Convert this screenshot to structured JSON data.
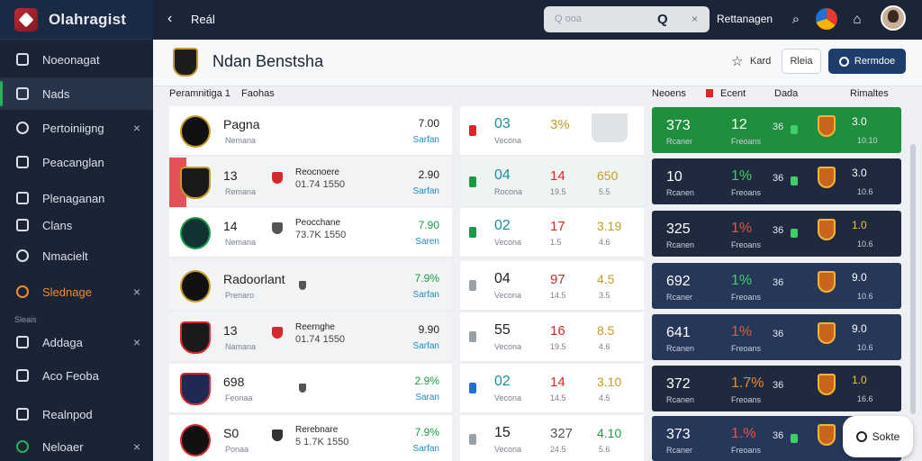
{
  "app": {
    "name": "Olahragist"
  },
  "sidebar": {
    "items": [
      {
        "label": "Noeonagat",
        "state": "normal"
      },
      {
        "label": "Nads",
        "state": "active"
      },
      {
        "label": "Pertoiniigng",
        "state": "normal",
        "close": "×"
      },
      {
        "label": "Peacanglan",
        "state": "normal"
      },
      {
        "label": "Plenaganan",
        "state": "normal"
      },
      {
        "label": "Clans",
        "state": "normal"
      },
      {
        "label": "Nmacielt",
        "state": "normal"
      },
      {
        "label": "Slednage",
        "state": "orange",
        "close": "×"
      },
      {
        "label": "Addaga",
        "state": "normal",
        "close": "×"
      },
      {
        "label": "Aco Feoba",
        "state": "normal"
      },
      {
        "label": "Realnpod",
        "state": "normal"
      },
      {
        "label": "Neloaer",
        "state": "green",
        "close": "×"
      }
    ],
    "section_label": "Sleais"
  },
  "topbar": {
    "back_label": "Reál",
    "search_placeholder": "Q ooa",
    "search_btn": "Q",
    "search_close": "×",
    "link": "Rettanagen"
  },
  "page": {
    "title": "Ndan Benstsha",
    "head_link": "Kard",
    "btn_light": "Rleia",
    "btn_dark": "Rermdoe"
  },
  "columns": {
    "left_title": "Peramnitiga 1",
    "left_sub": "Faohas",
    "right": [
      "Neoens",
      "Ecent",
      "Dada",
      "Rimaltes"
    ]
  },
  "left_rows": [
    {
      "name": "Pagna",
      "sub": "Nemana",
      "team": "",
      "meta": "",
      "val": "7.00",
      "link": "Sarfan",
      "shade": false
    },
    {
      "name": "13",
      "sub": "Remana",
      "team": "Reocnoere",
      "meta": "01.74  1550",
      "val": "2.90",
      "link": "Sarfan",
      "shade": true
    },
    {
      "name": "14",
      "sub": "Nemana",
      "team": "Peocchane",
      "meta": "73.7K  1550",
      "val": "7.90",
      "link": "Saren",
      "shade": false
    },
    {
      "name": "Radoorlant",
      "sub": "Prenaro",
      "team": "",
      "meta": "",
      "val": "7.9%",
      "link": "Sarfan",
      "shade": true
    },
    {
      "name": "13",
      "sub": "Namana",
      "team": "Reernghe",
      "meta": "01.74  1550",
      "val": "9.90",
      "link": "Sarfan",
      "shade": true
    },
    {
      "name": "698",
      "sub": "Feonaa",
      "team": "",
      "meta": "",
      "val": "2.9%",
      "link": "Saran",
      "shade": false
    },
    {
      "name": "S0",
      "sub": "Ponaa",
      "team": "Rerebnare",
      "meta": "5 1.7K  1550",
      "val": "7.9%",
      "link": "Sarfan",
      "shade": false
    }
  ],
  "mid_rows": [
    {
      "num": "03",
      "sub": "Vecona",
      "pct": "3%",
      "sub2": "",
      "val": "",
      "sub3": ""
    },
    {
      "num": "04",
      "sub": "Rocona",
      "pct": "14",
      "sub2": "19.5",
      "val": "650",
      "sub3": "5.5"
    },
    {
      "num": "02",
      "sub": "Vecona",
      "pct": "17",
      "sub2": "1.5",
      "val": "3.19",
      "sub3": "4.6"
    },
    {
      "num": "04",
      "sub": "Vecona",
      "pct": "97",
      "sub2": "14.5",
      "val": "4.5",
      "sub3": "3.5"
    },
    {
      "num": "55",
      "sub": "Vecona",
      "pct": "16",
      "sub2": "19.5",
      "val": "8.5",
      "sub3": "4.6"
    },
    {
      "num": "02",
      "sub": "Vecona",
      "pct": "14",
      "sub2": "14.5",
      "val": "3.10",
      "sub3": "4.5"
    },
    {
      "num": "15",
      "sub": "Vecona",
      "pct": "327",
      "sub2": "24.5",
      "val": "4.10",
      "sub3": "5.6"
    }
  ],
  "right_rows": [
    {
      "big": "373",
      "sub": "Rcaner",
      "mid": "12",
      "sub2": "Freoans",
      "small": "36",
      "score": "3.0",
      "score2": "10.10"
    },
    {
      "big": "10",
      "sub": "Rcanen",
      "mid": "1%",
      "sub2": "Freoans",
      "small": "36",
      "score": "3.0",
      "score2": "10.6"
    },
    {
      "big": "325",
      "sub": "Rcanen",
      "mid": "1%",
      "sub2": "Freoans",
      "small": "36",
      "score": "1.0",
      "score2": "10.6"
    },
    {
      "big": "692",
      "sub": "Rcaner",
      "mid": "1%",
      "sub2": "Freoans",
      "small": "36",
      "score": "9.0",
      "score2": "10.6"
    },
    {
      "big": "641",
      "sub": "Rcanen",
      "mid": "1%",
      "sub2": "Freoans",
      "small": "36",
      "score": "9.0",
      "score2": "10.6"
    },
    {
      "big": "372",
      "sub": "Rcanen",
      "mid": "1.7%",
      "sub2": "Freoans",
      "small": "36",
      "score": "1.0",
      "score2": "16.6"
    },
    {
      "big": "373",
      "sub": "Rcaner",
      "mid": "1.%",
      "sub2": "Freoans",
      "small": "36",
      "score": "",
      "score2": ""
    }
  ],
  "chat": {
    "label": "Sokte"
  },
  "colors": {
    "accent_green": "#1f8f3e",
    "sidebar": "#1b2435",
    "brand_red": "#c8262e"
  }
}
